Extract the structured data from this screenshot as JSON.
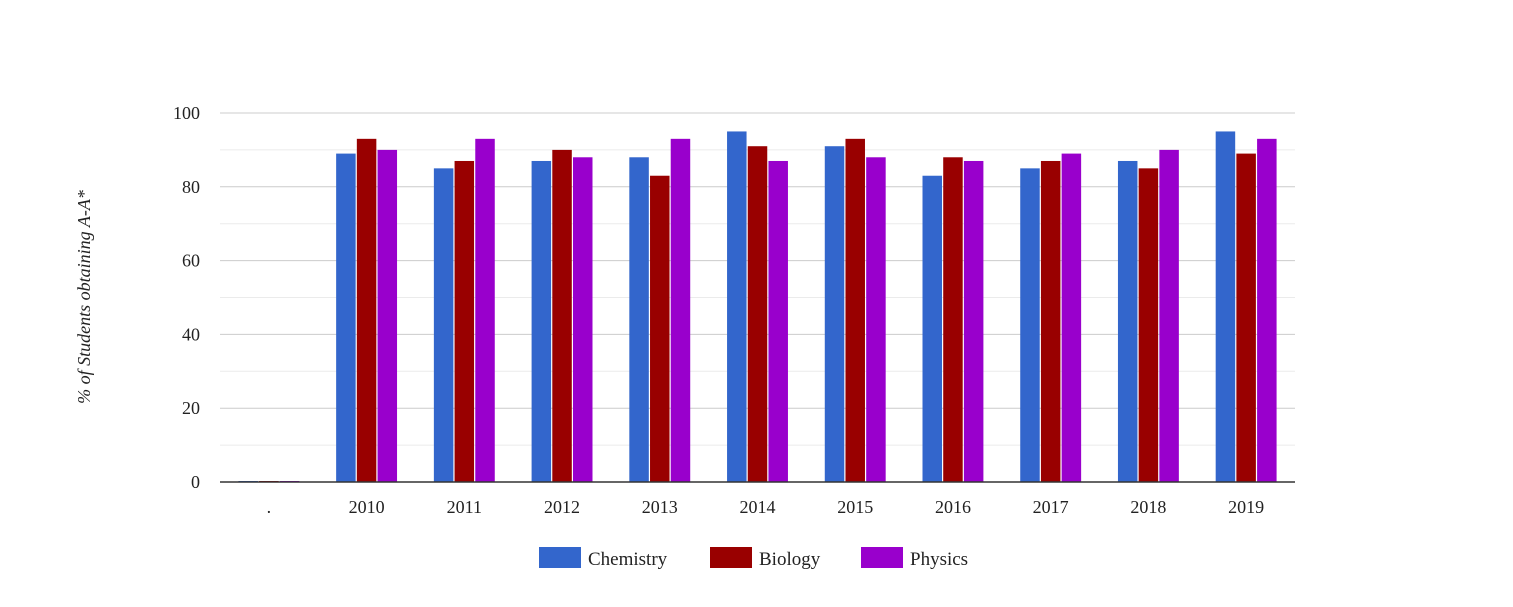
{
  "chart_data": {
    "type": "bar",
    "categories": [
      ".",
      "2010",
      "2011",
      "2012",
      "2013",
      "2014",
      "2015",
      "2016",
      "2017",
      "2018",
      "2019"
    ],
    "series": [
      {
        "name": "Chemistry",
        "color": "#3366cc",
        "values": [
          0,
          89,
          85,
          87,
          88,
          95,
          91,
          83,
          85,
          87,
          95
        ]
      },
      {
        "name": "Biology",
        "color": "#990000",
        "values": [
          0,
          93,
          87,
          90,
          83,
          91,
          93,
          88,
          87,
          85,
          89
        ]
      },
      {
        "name": "Physics",
        "color": "#9900cc",
        "values": [
          0,
          90,
          93,
          88,
          93,
          87,
          88,
          87,
          89,
          90,
          93
        ]
      }
    ],
    "title": "",
    "xlabel": "",
    "ylabel": "% of Students obtaining A-A*",
    "ylim": [
      0,
      100
    ],
    "yticks": [
      0,
      20,
      40,
      60,
      80,
      100
    ],
    "grid": true,
    "legend_position": "bottom"
  }
}
